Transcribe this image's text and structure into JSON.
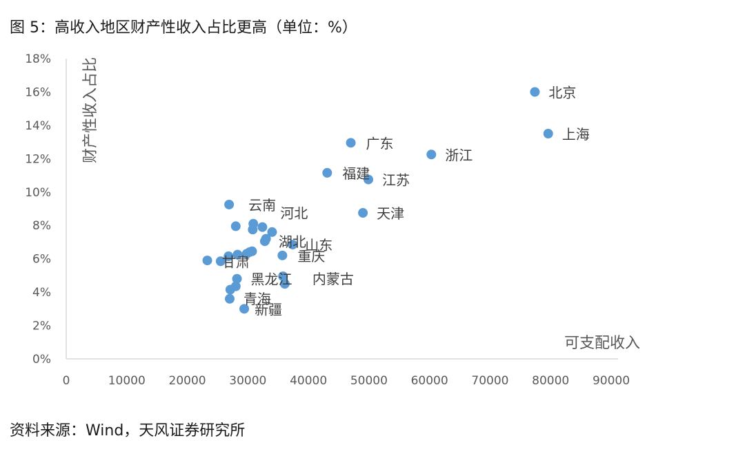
{
  "figure": {
    "title": "图 5：高收入地区财产性收入占比更高（单位：%）",
    "source": "资料来源：Wind，天风证券研究所"
  },
  "chart_data": {
    "type": "scatter",
    "xlabel": "可支配收入",
    "ylabel": "财产性收入占比",
    "xlim": [
      0,
      90000
    ],
    "ylim": [
      0,
      18
    ],
    "x_ticks": [
      "0",
      "10000",
      "20000",
      "30000",
      "40000",
      "50000",
      "60000",
      "70000",
      "80000",
      "90000"
    ],
    "y_ticks": [
      "0%",
      "2%",
      "4%",
      "6%",
      "8%",
      "10%",
      "12%",
      "14%",
      "16%",
      "18%"
    ],
    "grid": false,
    "marker_color": "#5b9bd5",
    "points": [
      {
        "label": "北京",
        "x": 77400,
        "y": 16.0
      },
      {
        "label": "上海",
        "x": 79600,
        "y": 13.5
      },
      {
        "label": "广东",
        "x": 47000,
        "y": 12.95
      },
      {
        "label": "浙江",
        "x": 60300,
        "y": 12.25
      },
      {
        "label": "福建",
        "x": 43100,
        "y": 11.15
      },
      {
        "label": "江苏",
        "x": 49900,
        "y": 10.75
      },
      {
        "label": "天津",
        "x": 49000,
        "y": 8.75
      },
      {
        "label": "云南",
        "x": 26900,
        "y": 9.25
      },
      {
        "label": "",
        "x": 30900,
        "y": 8.1
      },
      {
        "label": "",
        "x": 28000,
        "y": 7.95
      },
      {
        "label": "河北",
        "x": 32400,
        "y": 7.9
      },
      {
        "label": "",
        "x": 30800,
        "y": 7.75
      },
      {
        "label": "",
        "x": 34000,
        "y": 7.6
      },
      {
        "label": "",
        "x": 33000,
        "y": 7.2
      },
      {
        "label": "湖北",
        "x": 32800,
        "y": 7.05
      },
      {
        "label": "山东",
        "x": 37400,
        "y": 6.85
      },
      {
        "label": "",
        "x": 30700,
        "y": 6.45
      },
      {
        "label": "",
        "x": 30300,
        "y": 6.4
      },
      {
        "label": "",
        "x": 29800,
        "y": 6.3
      },
      {
        "label": "",
        "x": 28300,
        "y": 6.25
      },
      {
        "label": "",
        "x": 26800,
        "y": 6.15
      },
      {
        "label": "重庆",
        "x": 35700,
        "y": 6.2
      },
      {
        "label": "",
        "x": 23300,
        "y": 5.9
      },
      {
        "label": "甘肃",
        "x": 25500,
        "y": 5.85
      },
      {
        "label": "黑龙江",
        "x": 28200,
        "y": 4.8
      },
      {
        "label": "",
        "x": 35800,
        "y": 4.95
      },
      {
        "label": "内蒙古",
        "x": 36100,
        "y": 4.5
      },
      {
        "label": "",
        "x": 28000,
        "y": 4.35
      },
      {
        "label": "",
        "x": 27100,
        "y": 4.15
      },
      {
        "label": "青海",
        "x": 27000,
        "y": 3.6
      },
      {
        "label": "新疆",
        "x": 29400,
        "y": 3.0
      }
    ]
  }
}
